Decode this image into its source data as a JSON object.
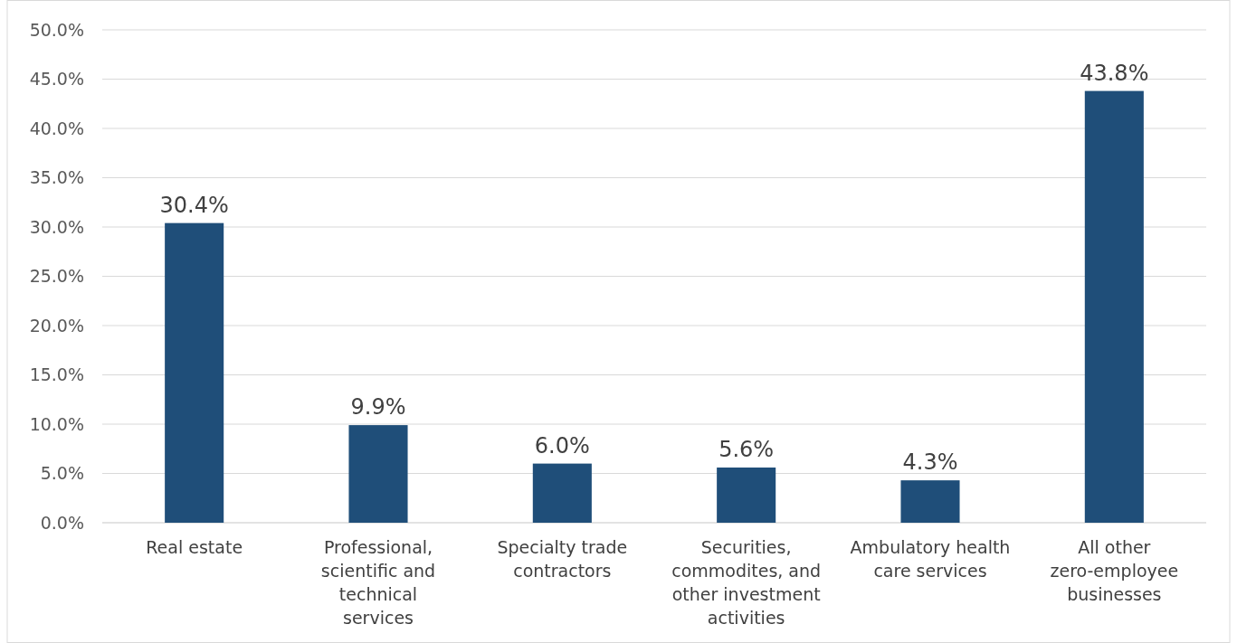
{
  "chart_data": {
    "type": "bar",
    "categories": [
      "Real estate",
      "Professional, scientific and technical services",
      "Specialty trade contractors",
      "Securities, commodites, and other investment activities",
      "Ambulatory health care services",
      "All other zero-employee businesses"
    ],
    "values": [
      30.4,
      9.9,
      6.0,
      5.6,
      4.3,
      43.8
    ],
    "value_labels": [
      "30.4%",
      "9.9%",
      "6.0%",
      "5.6%",
      "4.3%",
      "43.8%"
    ],
    "color": "#1f4e79",
    "ylim": [
      0,
      50
    ],
    "yticks": [
      {
        "value": 0,
        "label": "0.0%"
      },
      {
        "value": 5,
        "label": "5.0%"
      },
      {
        "value": 10,
        "label": "10.0%"
      },
      {
        "value": 15,
        "label": "15.0%"
      },
      {
        "value": 20,
        "label": "20.0%"
      },
      {
        "value": 25,
        "label": "25.0%"
      },
      {
        "value": 30,
        "label": "30.0%"
      },
      {
        "value": 35,
        "label": "35.0%"
      },
      {
        "value": 40,
        "label": "40.0%"
      },
      {
        "value": 45,
        "label": "45.0%"
      },
      {
        "value": 50,
        "label": "50.0%"
      }
    ],
    "grid": "y"
  }
}
